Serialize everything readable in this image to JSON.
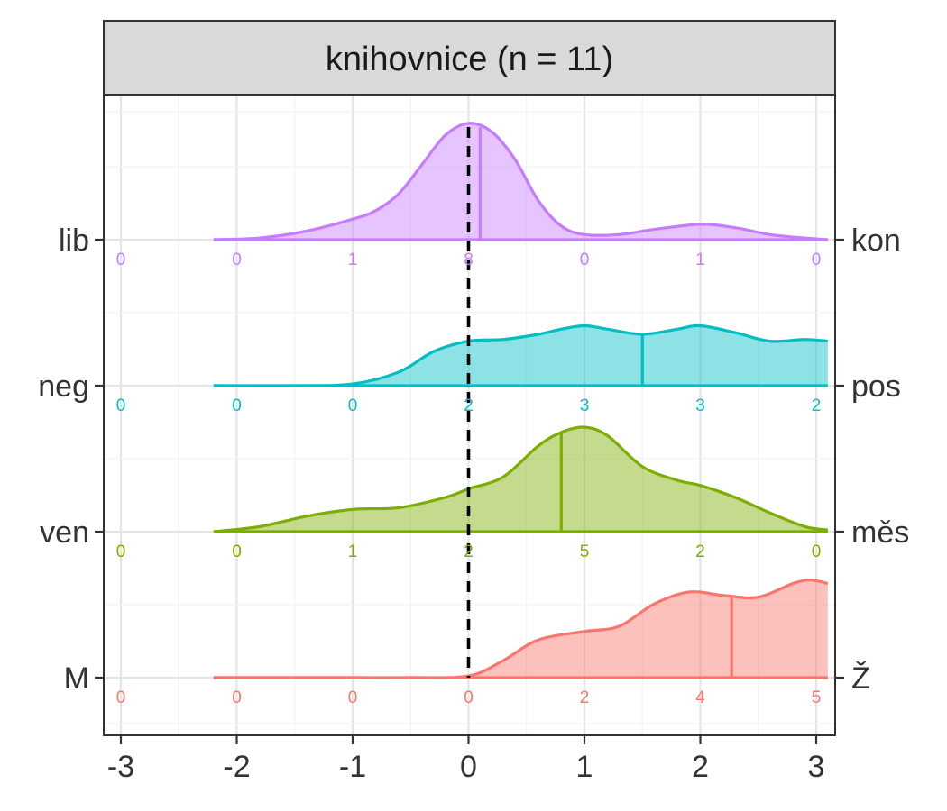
{
  "chart_data": {
    "type": "area",
    "title": "",
    "facet_label": "knihovnice (n = 11)",
    "xlabel": "",
    "ylabel": "",
    "xlim": [
      -3.1,
      3.1
    ],
    "x_ticks": [
      -3,
      -2,
      -1,
      0,
      1,
      2,
      3
    ],
    "x_tick_labels": [
      "-3",
      "-2",
      "-1",
      "0",
      "1",
      "2",
      "3"
    ],
    "reference_line_x": 0,
    "grid": true,
    "legend": "none",
    "count_positions": [
      -3,
      -2,
      -1,
      0,
      1,
      2,
      3
    ],
    "series": [
      {
        "left_label": "M",
        "right_label": "Ž",
        "color": "#F8766D",
        "median": 2.27,
        "counts": [
          "0",
          "0",
          "0",
          "0",
          "2",
          "4",
          "5"
        ],
        "density": [
          [
            -2.2,
            0
          ],
          [
            -1.5,
            0
          ],
          [
            -1,
            0
          ],
          [
            -0.5,
            0
          ],
          [
            0,
            0.01
          ],
          [
            0.3,
            0.1
          ],
          [
            0.6,
            0.22
          ],
          [
            1,
            0.27
          ],
          [
            1.3,
            0.3
          ],
          [
            1.6,
            0.43
          ],
          [
            1.9,
            0.5
          ],
          [
            2.2,
            0.48
          ],
          [
            2.5,
            0.47
          ],
          [
            2.8,
            0.55
          ],
          [
            2.95,
            0.57
          ],
          [
            3.1,
            0.55
          ]
        ]
      },
      {
        "left_label": "ven",
        "right_label": "měs",
        "color": "#7CAE00",
        "median": 0.8,
        "counts": [
          "0",
          "0",
          "1",
          "2",
          "5",
          "2",
          "0"
        ],
        "density": [
          [
            -2.2,
            0
          ],
          [
            -1.8,
            0.03
          ],
          [
            -1.4,
            0.09
          ],
          [
            -1.0,
            0.13
          ],
          [
            -0.6,
            0.14
          ],
          [
            -0.2,
            0.2
          ],
          [
            0,
            0.25
          ],
          [
            0.3,
            0.32
          ],
          [
            0.6,
            0.5
          ],
          [
            0.8,
            0.58
          ],
          [
            1.0,
            0.61
          ],
          [
            1.2,
            0.56
          ],
          [
            1.5,
            0.38
          ],
          [
            1.8,
            0.3
          ],
          [
            2.0,
            0.27
          ],
          [
            2.3,
            0.2
          ],
          [
            2.6,
            0.11
          ],
          [
            2.9,
            0.03
          ],
          [
            3.1,
            0.01
          ]
        ]
      },
      {
        "left_label": "neg",
        "right_label": "pos",
        "color": "#00BFC4",
        "median": 1.5,
        "counts": [
          "0",
          "0",
          "0",
          "2",
          "3",
          "3",
          "2"
        ],
        "density": [
          [
            -2.2,
            0
          ],
          [
            -1.5,
            0
          ],
          [
            -1,
            0.01
          ],
          [
            -0.6,
            0.08
          ],
          [
            -0.3,
            0.2
          ],
          [
            0,
            0.26
          ],
          [
            0.3,
            0.27
          ],
          [
            0.6,
            0.3
          ],
          [
            0.8,
            0.33
          ],
          [
            1.0,
            0.35
          ],
          [
            1.2,
            0.33
          ],
          [
            1.5,
            0.3
          ],
          [
            1.8,
            0.33
          ],
          [
            2.0,
            0.35
          ],
          [
            2.3,
            0.31
          ],
          [
            2.6,
            0.26
          ],
          [
            2.9,
            0.27
          ],
          [
            3.1,
            0.26
          ]
        ]
      },
      {
        "left_label": "lib",
        "right_label": "kon",
        "color": "#C77CFF",
        "median": 0.1,
        "counts": [
          "0",
          "0",
          "1",
          "8",
          "0",
          "1",
          "0"
        ],
        "density": [
          [
            -2.2,
            0
          ],
          [
            -1.8,
            0.01
          ],
          [
            -1.4,
            0.05
          ],
          [
            -1.0,
            0.12
          ],
          [
            -0.8,
            0.17
          ],
          [
            -0.6,
            0.27
          ],
          [
            -0.4,
            0.44
          ],
          [
            -0.2,
            0.61
          ],
          [
            0,
            0.68
          ],
          [
            0.2,
            0.63
          ],
          [
            0.4,
            0.47
          ],
          [
            0.6,
            0.23
          ],
          [
            0.8,
            0.08
          ],
          [
            1.0,
            0.03
          ],
          [
            1.3,
            0.03
          ],
          [
            1.6,
            0.06
          ],
          [
            2.0,
            0.09
          ],
          [
            2.3,
            0.07
          ],
          [
            2.6,
            0.03
          ],
          [
            2.9,
            0.01
          ],
          [
            3.1,
            0
          ]
        ]
      }
    ]
  }
}
